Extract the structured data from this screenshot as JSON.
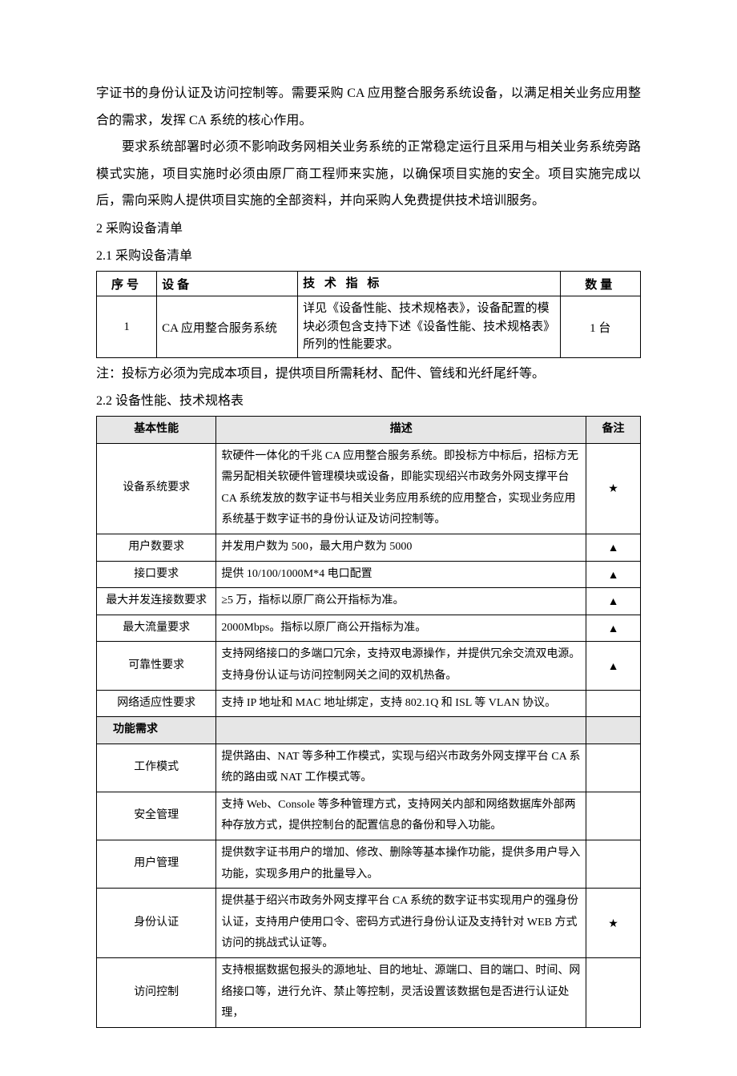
{
  "intro": {
    "p1": "字证书的身份认证及访问控制等。需要采购 CA 应用整合服务系统设备，以满足相关业务应用整合的需求，发挥 CA 系统的核心作用。",
    "p2": "要求系统部署时必须不影响政务网相关业务系统的正常稳定运行且采用与相关业务系统旁路模式实施，项目实施时必须由原厂商工程师来实施，以确保项目实施的安全。项目实施完成以后，需向采购人提供项目实施的全部资料，并向采购人免费提供技术培训服务。"
  },
  "sections": {
    "s2": "2 采购设备清单",
    "s2_1": "2.1 采购设备清单",
    "s2_2": "2.2 设备性能、技术规格表"
  },
  "table1": {
    "headers": {
      "c1": "序号",
      "c2": "设备",
      "c3": "技 术 指 标",
      "c4": "数量"
    },
    "row": {
      "c1": "1",
      "c2": "CA 应用整合服务系统",
      "c3": "详见《设备性能、技术规格表》，设备配置的模块必须包含支持下述《设备性能、技术规格表》所列的性能要求。",
      "c4": "1 台"
    }
  },
  "note": "注：投标方必须为完成本项目，提供项目所需耗材、配件、管线和光纤尾纤等。",
  "table2": {
    "headers": {
      "h1": "基本性能",
      "h2": "描述",
      "h3": "备注"
    },
    "rows": [
      {
        "name": "设备系统要求",
        "desc": "软硬件一体化的千兆 CA 应用整合服务系统。即投标方中标后，招标方无需另配相关软硬件管理模块或设备，即能实现绍兴市政务外网支撑平台 CA 系统发放的数字证书与相关业务应用系统的应用整合，实现业务应用系统基于数字证书的身份认证及访问控制等。",
        "mark": "★"
      },
      {
        "name": "用户数要求",
        "desc": "并发用户数为 500，最大用户数为 5000",
        "mark": "▲"
      },
      {
        "name": "接口要求",
        "desc": "提供 10/100/1000M*4 电口配置",
        "mark": "▲"
      },
      {
        "name": "最大并发连接数要求",
        "desc": "≥5 万，指标以原厂商公开指标为准。",
        "mark": "▲"
      },
      {
        "name": "最大流量要求",
        "desc": "2000Mbps。指标以原厂商公开指标为准。",
        "mark": "▲"
      },
      {
        "name": "可靠性要求",
        "desc": "支持网络接口的多端口冗余，支持双电源操作，并提供冗余交流双电源。支持身份认证与访问控制网关之间的双机热备。",
        "mark": "▲"
      },
      {
        "name": "网络适应性要求",
        "desc": "支持 IP 地址和 MAC 地址绑定，支持 802.1Q 和 ISL 等 VLAN 协议。",
        "mark": ""
      }
    ],
    "section2_header": "功能需求",
    "rows2": [
      {
        "name": "工作模式",
        "desc": "提供路由、NAT 等多种工作模式，实现与绍兴市政务外网支撑平台 CA 系统的路由或 NAT 工作模式等。",
        "mark": ""
      },
      {
        "name": "安全管理",
        "desc": "支持 Web、Console 等多种管理方式，支持网关内部和网络数据库外部两种存放方式，提供控制台的配置信息的备份和导入功能。",
        "mark": ""
      },
      {
        "name": "用户管理",
        "desc": "提供数字证书用户的增加、修改、删除等基本操作功能，提供多用户导入功能，实现多用户的批量导入。",
        "mark": ""
      },
      {
        "name": "身份认证",
        "desc": "提供基于绍兴市政务外网支撑平台 CA 系统的数字证书实现用户的强身份认证，支持用户使用口令、密码方式进行身份认证及支持针对 WEB 方式访问的挑战式认证等。",
        "mark": "★"
      },
      {
        "name": "访问控制",
        "desc": "支持根据数据包报头的源地址、目的地址、源端口、目的端口、时间、网络接口等，进行允许、禁止等控制，灵活设置该数据包是否进行认证处理，",
        "mark": ""
      }
    ]
  }
}
